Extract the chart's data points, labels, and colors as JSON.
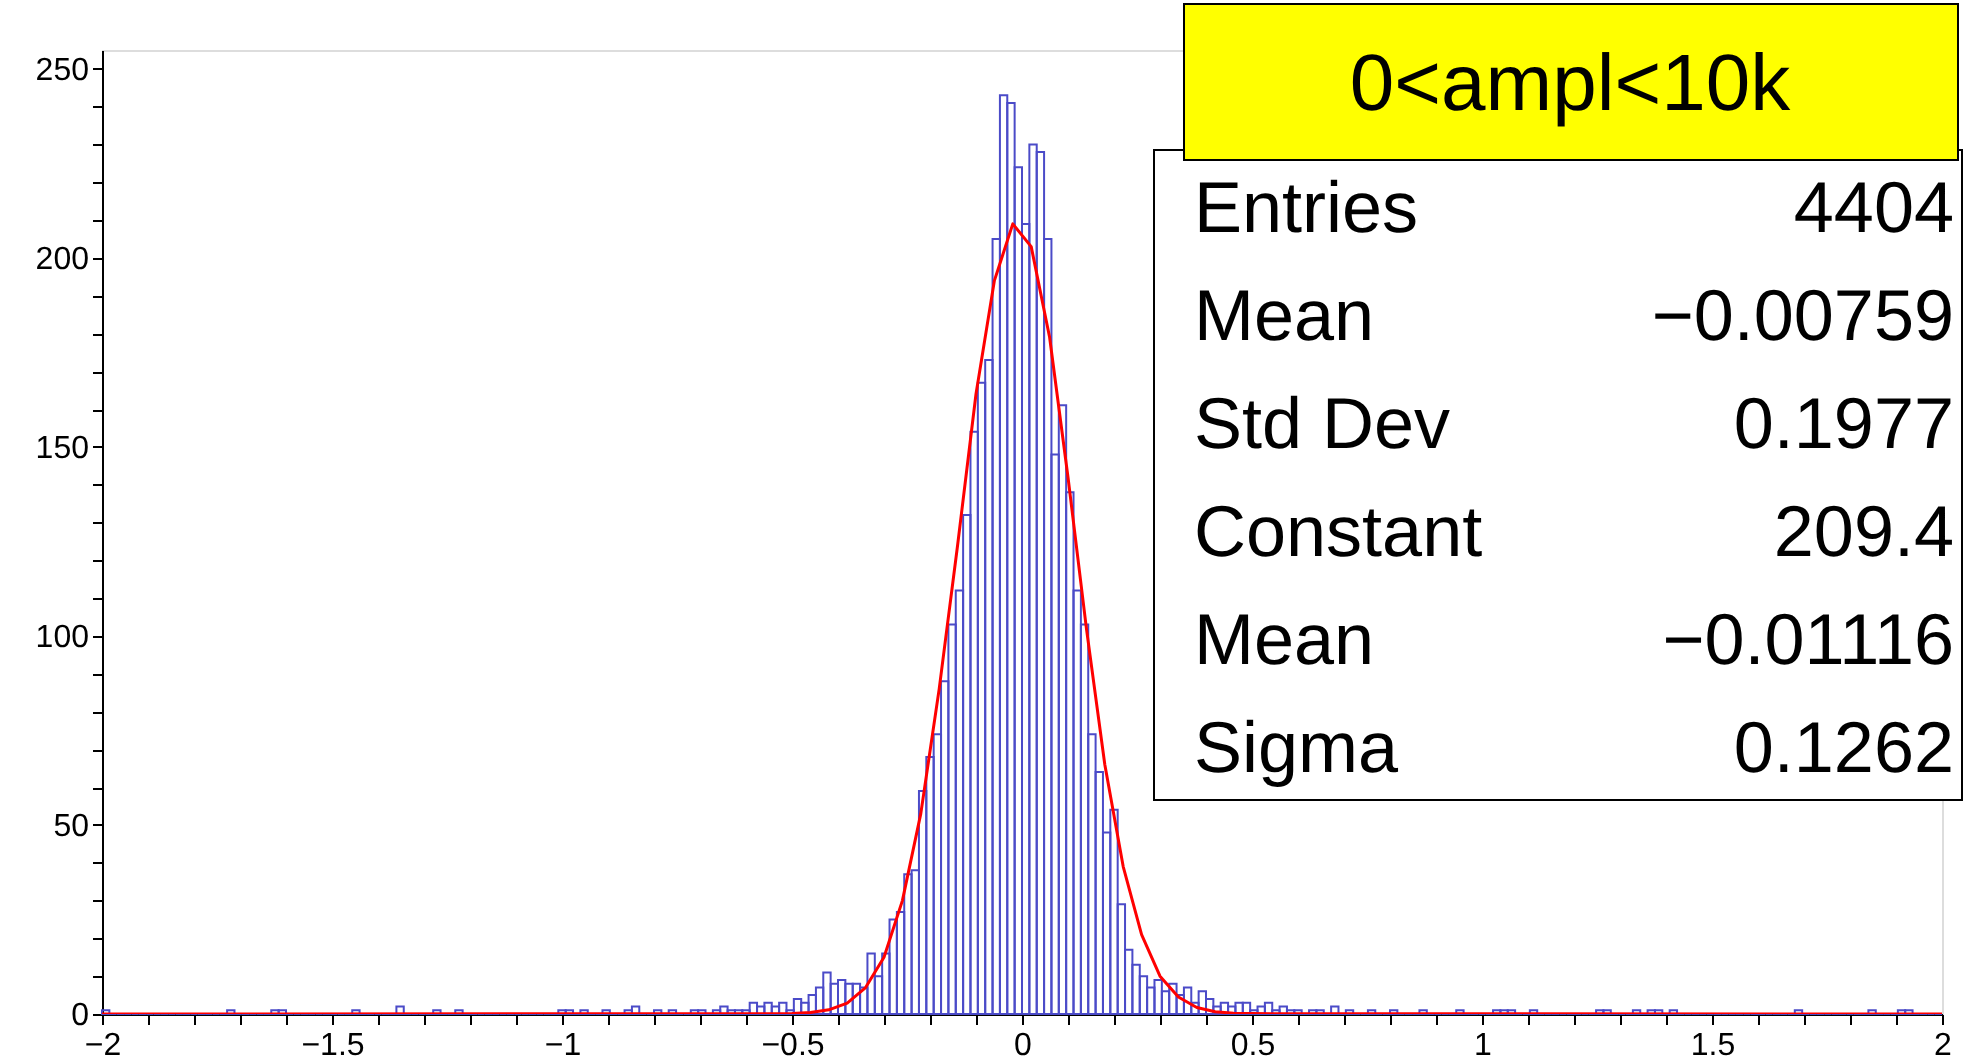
{
  "chart_data": {
    "type": "histogram",
    "title": "0<ampl<10k",
    "annotations": [
      "Entries",
      "4404",
      "Mean",
      "−0.00759",
      "Std Dev",
      "0.1977",
      "Constant",
      "209.4",
      "Mean",
      "−0.01116",
      "Sigma",
      "0.1262"
    ],
    "xlim": [
      -2,
      2
    ],
    "ylim": [
      0,
      255
    ],
    "xticks": [
      {
        "value": -2,
        "label": "−2"
      },
      {
        "value": -1.9,
        "label": null
      },
      {
        "value": -1.8,
        "label": null
      },
      {
        "value": -1.7,
        "label": null
      },
      {
        "value": -1.6,
        "label": null
      },
      {
        "value": -1.5,
        "label": "−1.5"
      },
      {
        "value": -1.4,
        "label": null
      },
      {
        "value": -1.3,
        "label": null
      },
      {
        "value": -1.2,
        "label": null
      },
      {
        "value": -1.1,
        "label": null
      },
      {
        "value": -1,
        "label": "−1"
      },
      {
        "value": -0.9,
        "label": null
      },
      {
        "value": -0.8,
        "label": null
      },
      {
        "value": -0.7,
        "label": null
      },
      {
        "value": -0.6,
        "label": null
      },
      {
        "value": -0.5,
        "label": "−0.5"
      },
      {
        "value": -0.4,
        "label": null
      },
      {
        "value": -0.3,
        "label": null
      },
      {
        "value": -0.2,
        "label": null
      },
      {
        "value": -0.1,
        "label": null
      },
      0,
      {
        "value": 0.1,
        "label": null
      },
      {
        "value": 0.2,
        "label": null
      },
      {
        "value": 0.3,
        "label": null
      },
      {
        "value": 0.4,
        "label": null
      },
      0.5,
      {
        "value": 0.6,
        "label": null
      },
      {
        "value": 0.7,
        "label": null
      },
      {
        "value": 0.8,
        "label": null
      },
      {
        "value": 0.9,
        "label": null
      },
      1,
      {
        "value": 1.1,
        "label": null
      },
      {
        "value": 1.2,
        "label": null
      },
      {
        "value": 1.3,
        "label": null
      },
      {
        "value": 1.4,
        "label": null
      },
      1.5,
      {
        "value": 1.6,
        "label": null
      },
      {
        "value": 1.7,
        "label": null
      },
      {
        "value": 1.8,
        "label": null
      },
      {
        "value": 1.9,
        "label": null
      },
      2
    ],
    "yticks": [
      0,
      {
        "value": 10,
        "label": null
      },
      {
        "value": 20,
        "label": null
      },
      {
        "value": 30,
        "label": null
      },
      {
        "value": 40,
        "label": null
      },
      50,
      {
        "value": 60,
        "label": null
      },
      {
        "value": 70,
        "label": null
      },
      {
        "value": 80,
        "label": null
      },
      {
        "value": 90,
        "label": null
      },
      100,
      {
        "value": 110,
        "label": null
      },
      {
        "value": 120,
        "label": null
      },
      {
        "value": 130,
        "label": null
      },
      {
        "value": 140,
        "label": null
      },
      150,
      {
        "value": 160,
        "label": null
      },
      {
        "value": 170,
        "label": null
      },
      {
        "value": 180,
        "label": null
      },
      {
        "value": 190,
        "label": null
      },
      200,
      {
        "value": 210,
        "label": null
      },
      {
        "value": 220,
        "label": null
      },
      {
        "value": 230,
        "label": null
      },
      {
        "value": 240,
        "label": null
      },
      250
    ],
    "series": [
      {
        "type": "histogram",
        "color": "#4b4bc8",
        "bins": [
          -2,
          -1.984,
          -1.968,
          -1.952,
          -1.936,
          -1.92,
          -1.904,
          -1.888,
          -1.872,
          -1.856,
          -1.84,
          -1.824,
          -1.808,
          -1.792,
          -1.776,
          -1.76,
          -1.744,
          -1.728,
          -1.712,
          -1.696,
          -1.68,
          -1.664,
          -1.648,
          -1.632,
          -1.616,
          -1.6,
          -1.584,
          -1.568,
          -1.552,
          -1.536,
          -1.52,
          -1.504,
          -1.488,
          -1.472,
          -1.456,
          -1.44,
          -1.424,
          -1.408,
          -1.392,
          -1.376,
          -1.36,
          -1.344,
          -1.328,
          -1.312,
          -1.296,
          -1.28,
          -1.264,
          -1.248,
          -1.232,
          -1.216,
          -1.2,
          -1.184,
          -1.168,
          -1.152,
          -1.136,
          -1.12,
          -1.104,
          -1.088,
          -1.072,
          -1.056,
          -1.04,
          -1.024,
          -1.008,
          -0.992,
          -0.976,
          -0.96,
          -0.944,
          -0.928,
          -0.912,
          -0.896,
          -0.88,
          -0.864,
          -0.848,
          -0.832,
          -0.816,
          -0.8,
          -0.784,
          -0.768,
          -0.752,
          -0.736,
          -0.72,
          -0.704,
          -0.688,
          -0.672,
          -0.656,
          -0.64,
          -0.624,
          -0.608,
          -0.592,
          -0.576,
          -0.56,
          -0.544,
          -0.528,
          -0.512,
          -0.496,
          -0.48,
          -0.464,
          -0.448,
          -0.432,
          -0.416,
          -0.4,
          -0.384,
          -0.368,
          -0.352,
          -0.336,
          -0.32,
          -0.304,
          -0.288,
          -0.272,
          -0.256,
          -0.24,
          -0.224,
          -0.208,
          -0.192,
          -0.176,
          -0.16,
          -0.144,
          -0.128,
          -0.112,
          -0.096,
          -0.08,
          -0.064,
          -0.048,
          -0.032,
          -0.016,
          0,
          0.016,
          0.032,
          0.048,
          0.064,
          0.08,
          0.096,
          0.112,
          0.128,
          0.144,
          0.16,
          0.176,
          0.192,
          0.208,
          0.224,
          0.24,
          0.256,
          0.272,
          0.288,
          0.304,
          0.32,
          0.336,
          0.352,
          0.368,
          0.384,
          0.4,
          0.416,
          0.432,
          0.448,
          0.464,
          0.48,
          0.496,
          0.512,
          0.528,
          0.544,
          0.56,
          0.576,
          0.592,
          0.608,
          0.624,
          0.64,
          0.656,
          0.672,
          0.688,
          0.704,
          0.72,
          0.736,
          0.752,
          0.768,
          0.784,
          0.8,
          0.816,
          0.832,
          0.848,
          0.864,
          0.88,
          0.896,
          0.912,
          0.928,
          0.944,
          0.96,
          0.976,
          0.992,
          1.008,
          1.024,
          1.04,
          1.056,
          1.072,
          1.088,
          1.104,
          1.12,
          1.136,
          1.152,
          1.168,
          1.184,
          1.2,
          1.216,
          1.232,
          1.248,
          1.264,
          1.28,
          1.296,
          1.312,
          1.328,
          1.344,
          1.36,
          1.376,
          1.392,
          1.408,
          1.424,
          1.44,
          1.456,
          1.472,
          1.488,
          1.504,
          1.52,
          1.536,
          1.552,
          1.568,
          1.584,
          1.6,
          1.616,
          1.632,
          1.648,
          1.664,
          1.68,
          1.696,
          1.712,
          1.728,
          1.744,
          1.76,
          1.776,
          1.792,
          1.808,
          1.824,
          1.84,
          1.856,
          1.872,
          1.888,
          1.904,
          1.92,
          1.936,
          1.952,
          1.968,
          1.984,
          2
        ],
        "values": [
          1,
          0,
          0,
          0,
          0,
          0,
          0,
          0,
          0,
          0,
          0,
          0,
          0,
          0,
          0,
          0,
          0,
          1,
          0,
          0,
          0,
          0,
          0,
          1,
          1,
          0,
          0,
          0,
          0,
          0,
          0,
          0,
          0,
          0,
          1,
          0,
          0,
          0,
          0,
          0,
          2,
          0,
          0,
          0,
          0,
          1,
          0,
          0,
          1,
          0,
          0,
          0,
          0,
          0,
          0,
          0,
          0,
          0,
          0,
          0,
          0,
          0,
          1,
          1,
          0,
          1,
          0,
          0,
          1,
          0,
          0,
          1,
          2,
          0,
          0,
          1,
          0,
          1,
          0,
          0,
          1,
          1,
          0,
          1,
          2,
          1,
          1,
          1,
          3,
          2,
          3,
          2,
          3,
          1,
          4,
          3,
          5,
          7,
          11,
          8,
          9,
          8,
          8,
          7,
          16,
          10,
          16,
          25,
          27,
          37,
          38,
          59,
          68,
          74,
          88,
          103,
          112,
          132,
          154,
          167,
          173,
          205,
          243,
          241,
          224,
          209,
          230,
          228,
          205,
          148,
          161,
          138,
          112,
          103,
          74,
          64,
          48,
          54,
          29,
          17,
          13,
          10,
          7,
          9,
          6,
          8,
          5,
          7,
          3,
          6,
          4,
          2,
          3,
          2,
          3,
          3,
          1,
          2,
          3,
          1,
          2,
          1,
          1,
          0,
          1,
          1,
          0,
          2,
          0,
          1,
          0,
          0,
          1,
          0,
          0,
          1,
          0,
          0,
          0,
          1,
          0,
          0,
          0,
          0,
          1,
          0,
          0,
          0,
          0,
          1,
          1,
          1,
          0,
          0,
          1,
          0,
          0,
          0,
          0,
          0,
          0,
          0,
          0,
          1,
          1,
          0,
          0,
          0,
          1,
          0,
          1,
          1,
          0,
          1,
          0,
          0,
          0,
          0,
          0,
          0,
          0,
          0,
          0,
          0,
          0,
          0,
          0,
          0,
          0,
          0,
          1,
          0,
          0,
          0,
          0,
          0,
          0,
          0,
          0,
          0,
          1,
          0,
          0,
          0,
          1,
          1,
          0,
          0,
          0,
          0
        ]
      },
      {
        "type": "line",
        "color": "#ff0000",
        "x": [
          -2,
          -0.5,
          -0.46,
          -0.42,
          -0.38,
          -0.34,
          -0.3,
          -0.26,
          -0.22,
          -0.18,
          -0.14,
          -0.1,
          -0.06,
          -0.02,
          0.02,
          0.06,
          0.1,
          0.14,
          0.18,
          0.22,
          0.26,
          0.3,
          0.34,
          0.38,
          0.42,
          0.46,
          0.5,
          2
        ],
        "values": [
          0,
          0.1,
          0.4,
          1.1,
          2.9,
          7,
          15,
          30,
          53,
          86,
          124,
          164,
          194,
          209,
          203,
          179,
          142,
          102,
          66,
          39,
          21,
          10,
          4.5,
          1.7,
          0.6,
          0.2,
          0.1,
          0
        ]
      }
    ]
  }
}
